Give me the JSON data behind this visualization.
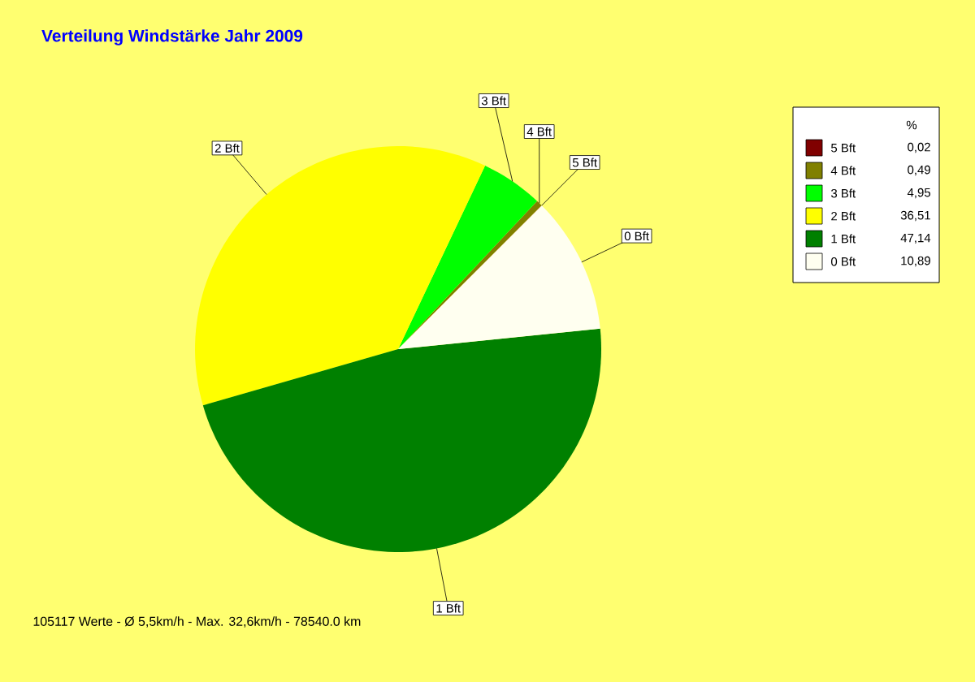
{
  "chart_data": {
    "type": "pie",
    "title": "Verteilung Windstärke  Jahr 2009",
    "categories": [
      "5 Bft",
      "4 Bft",
      "3 Bft",
      "2 Bft",
      "1 Bft",
      "0 Bft"
    ],
    "values": [
      0.02,
      0.49,
      4.95,
      36.51,
      47.14,
      10.89
    ],
    "value_labels": [
      "0,02",
      "0,49",
      "4,95",
      "36,51",
      "47,14",
      "10,89"
    ],
    "colors": [
      "#800000",
      "#808000",
      "#00ff00",
      "#ffff00",
      "#008000",
      "#fffff0"
    ],
    "legend_title": "%",
    "legend": "right",
    "annotations": [
      "105117 Werte   -   Ø 5,5km/h   -   Max. 32,6km/h   -   78540.0 km"
    ]
  }
}
